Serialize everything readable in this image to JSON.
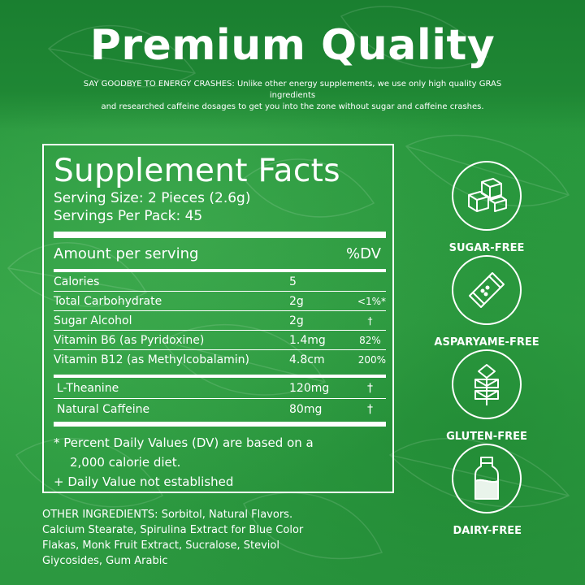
{
  "header": {
    "title": "Premium Quality",
    "subtitle_line1": "SAY GOODBYE TO ENERGY CRASHES: Unlike other energy supplements, we use only high quality GRAS ingredients",
    "subtitle_line2": "and researched caffeine dosages to get you into the zone without sugar and caffeine crashes."
  },
  "facts": {
    "title": "Supplement Facts",
    "serving_size": "Serving Size: 2 Pieces (2.6g)",
    "servings_per_pack": "Servings Per Pack: 45",
    "amount_label": "Amount per serving",
    "dv_label": "%DV",
    "rows": [
      {
        "name": "Calories",
        "amount": "5",
        "dv": ""
      },
      {
        "name": "Total Carbohydrate",
        "amount": "2g",
        "dv": "<1%*"
      },
      {
        "name": "Sugar Alcohol",
        "amount": "2g",
        "dv": "†"
      },
      {
        "name": "Vitamin B6 (as Pyridoxine)",
        "amount": "1.4mg",
        "dv": "82%"
      },
      {
        "name": "Vitamin B12 (as Methylcobalamin)",
        "amount": "4.8cm",
        "dv": "200%"
      }
    ],
    "rows2": [
      {
        "name": "L-Theanine",
        "amount": "120mg",
        "dv": "†"
      },
      {
        "name": "Natural Caffeine",
        "amount": "80mg",
        "dv": "†"
      }
    ],
    "footnote1_line1": "* Percent Daily Values (DV) are based on a",
    "footnote1_line2": "2,000 calorie diet.",
    "footnote2": "+ Daily Value not established"
  },
  "other_ingredients": {
    "line1": "OTHER INGREDIENTS: Sorbitol, Natural Flavors.",
    "line2": "Calcium Stearate, Spirulina Extract for Blue Color",
    "line3": "Flakas, Monk Fruit Extract, Sucralose, Steviol",
    "line4": "Giycosides, Gum Arabic"
  },
  "badges": [
    {
      "label": "SUGAR-FREE",
      "icon": "sugar-cubes-icon"
    },
    {
      "label": "ASPARYAME-FREE",
      "icon": "sweetener-packet-icon"
    },
    {
      "label": "GLUTEN-FREE",
      "icon": "wheat-icon"
    },
    {
      "label": "DAIRY-FREE",
      "icon": "milk-bottle-icon"
    }
  ],
  "colors": {
    "background": "#2f9a3e",
    "text": "#ffffff"
  }
}
